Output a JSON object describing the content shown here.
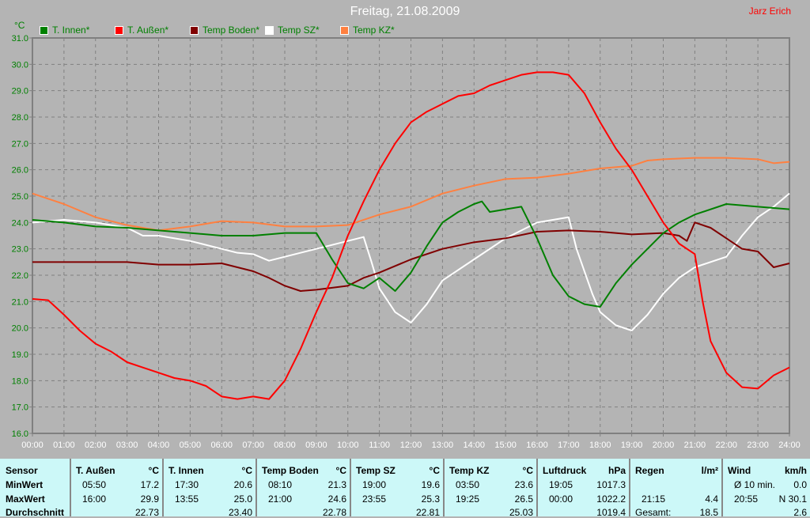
{
  "title": "Freitag, 21.08.2009",
  "author": "Jarz Erich",
  "chart_data": {
    "type": "line",
    "title": "Freitag, 21.08.2009",
    "ylabel": "°C",
    "ylim": [
      16.0,
      31.0
    ],
    "yticks": [
      "16.0",
      "17.0",
      "18.0",
      "19.0",
      "20.0",
      "21.0",
      "22.0",
      "23.0",
      "24.0",
      "25.0",
      "26.0",
      "27.0",
      "28.0",
      "29.0",
      "30.0",
      "31.0"
    ],
    "xlim": [
      0,
      24
    ],
    "xticks": [
      "00:00",
      "01:00",
      "02:00",
      "03:00",
      "04:00",
      "05:00",
      "06:00",
      "07:00",
      "08:00",
      "09:00",
      "10:00",
      "11:00",
      "12:00",
      "13:00",
      "14:00",
      "15:00",
      "16:00",
      "17:00",
      "18:00",
      "19:00",
      "20:00",
      "21:00",
      "22:00",
      "23:00",
      "24:00"
    ],
    "grid": true,
    "legend": "top",
    "series": [
      {
        "name": "T. Innen*",
        "color": "#008000",
        "points": [
          [
            0,
            24.1
          ],
          [
            1,
            24.0
          ],
          [
            2,
            23.85
          ],
          [
            3,
            23.8
          ],
          [
            4,
            23.7
          ],
          [
            5,
            23.6
          ],
          [
            6,
            23.5
          ],
          [
            7,
            23.5
          ],
          [
            8,
            23.6
          ],
          [
            9,
            23.6
          ],
          [
            9.5,
            22.6
          ],
          [
            10,
            21.7
          ],
          [
            10.5,
            21.5
          ],
          [
            11,
            21.9
          ],
          [
            11.5,
            21.4
          ],
          [
            12,
            22.1
          ],
          [
            12.5,
            23.1
          ],
          [
            13,
            24.0
          ],
          [
            13.5,
            24.4
          ],
          [
            14,
            24.7
          ],
          [
            14.25,
            24.8
          ],
          [
            14.5,
            24.4
          ],
          [
            15,
            24.5
          ],
          [
            15.5,
            24.6
          ],
          [
            16,
            23.4
          ],
          [
            16.5,
            22.0
          ],
          [
            17,
            21.2
          ],
          [
            17.5,
            20.9
          ],
          [
            18,
            20.8
          ],
          [
            18.5,
            21.7
          ],
          [
            19,
            22.4
          ],
          [
            19.5,
            23.0
          ],
          [
            20,
            23.6
          ],
          [
            20.5,
            24.0
          ],
          [
            21,
            24.3
          ],
          [
            22,
            24.7
          ],
          [
            23,
            24.6
          ],
          [
            24,
            24.5
          ]
        ]
      },
      {
        "name": "T. Außen*",
        "color": "#ff0000",
        "points": [
          [
            0,
            21.1
          ],
          [
            0.5,
            21.05
          ],
          [
            1,
            20.5
          ],
          [
            1.5,
            19.9
          ],
          [
            2,
            19.4
          ],
          [
            2.5,
            19.1
          ],
          [
            3,
            18.7
          ],
          [
            3.5,
            18.5
          ],
          [
            4,
            18.3
          ],
          [
            4.5,
            18.1
          ],
          [
            5,
            18.0
          ],
          [
            5.5,
            17.8
          ],
          [
            6,
            17.4
          ],
          [
            6.5,
            17.3
          ],
          [
            7,
            17.4
          ],
          [
            7.5,
            17.3
          ],
          [
            8,
            18.0
          ],
          [
            8.5,
            19.2
          ],
          [
            9,
            20.6
          ],
          [
            9.5,
            21.9
          ],
          [
            10,
            23.5
          ],
          [
            10.5,
            24.8
          ],
          [
            11,
            26.0
          ],
          [
            11.5,
            27.0
          ],
          [
            12,
            27.8
          ],
          [
            12.5,
            28.2
          ],
          [
            13,
            28.5
          ],
          [
            13.5,
            28.8
          ],
          [
            14,
            28.9
          ],
          [
            14.5,
            29.2
          ],
          [
            15,
            29.4
          ],
          [
            15.5,
            29.6
          ],
          [
            16,
            29.7
          ],
          [
            16.5,
            29.7
          ],
          [
            17,
            29.6
          ],
          [
            17.5,
            28.9
          ],
          [
            18,
            27.8
          ],
          [
            18.5,
            26.8
          ],
          [
            19,
            26.0
          ],
          [
            19.5,
            25.0
          ],
          [
            20,
            24.0
          ],
          [
            20.5,
            23.2
          ],
          [
            21,
            22.8
          ],
          [
            21.25,
            21.0
          ],
          [
            21.5,
            19.5
          ],
          [
            22,
            18.3
          ],
          [
            22.5,
            17.75
          ],
          [
            23,
            17.7
          ],
          [
            23.5,
            18.2
          ],
          [
            24,
            18.5
          ]
        ]
      },
      {
        "name": "Temp Boden*",
        "color": "#800000",
        "points": [
          [
            0,
            22.5
          ],
          [
            2,
            22.5
          ],
          [
            3,
            22.5
          ],
          [
            4,
            22.4
          ],
          [
            5,
            22.4
          ],
          [
            6,
            22.45
          ],
          [
            6.5,
            22.3
          ],
          [
            7,
            22.15
          ],
          [
            7.5,
            21.9
          ],
          [
            8,
            21.6
          ],
          [
            8.5,
            21.4
          ],
          [
            9,
            21.45
          ],
          [
            10,
            21.6
          ],
          [
            10.5,
            21.9
          ],
          [
            11,
            22.1
          ],
          [
            12,
            22.6
          ],
          [
            13,
            23.0
          ],
          [
            14,
            23.25
          ],
          [
            15,
            23.4
          ],
          [
            16,
            23.65
          ],
          [
            17,
            23.7
          ],
          [
            18,
            23.65
          ],
          [
            19,
            23.55
          ],
          [
            20,
            23.6
          ],
          [
            20.5,
            23.5
          ],
          [
            20.75,
            23.3
          ],
          [
            21,
            24.0
          ],
          [
            21.5,
            23.8
          ],
          [
            22,
            23.4
          ],
          [
            22.5,
            23.0
          ],
          [
            23,
            22.9
          ],
          [
            23.5,
            22.3
          ],
          [
            24,
            22.45
          ]
        ]
      },
      {
        "name": "Temp SZ*",
        "color": "#ffffff",
        "points": [
          [
            0,
            24.0
          ],
          [
            1,
            24.1
          ],
          [
            2,
            24.0
          ],
          [
            3,
            23.8
          ],
          [
            3.5,
            23.5
          ],
          [
            4,
            23.5
          ],
          [
            5,
            23.3
          ],
          [
            6,
            23.0
          ],
          [
            6.5,
            22.85
          ],
          [
            7,
            22.8
          ],
          [
            7.5,
            22.55
          ],
          [
            8,
            22.7
          ],
          [
            9,
            23.0
          ],
          [
            10,
            23.3
          ],
          [
            10.5,
            23.45
          ],
          [
            10.75,
            22.5
          ],
          [
            11,
            21.5
          ],
          [
            11.5,
            20.6
          ],
          [
            12,
            20.2
          ],
          [
            12.5,
            20.9
          ],
          [
            13,
            21.8
          ],
          [
            14,
            22.6
          ],
          [
            15,
            23.4
          ],
          [
            16,
            24.0
          ],
          [
            17,
            24.2
          ],
          [
            17.25,
            23.0
          ],
          [
            17.75,
            21.3
          ],
          [
            18,
            20.6
          ],
          [
            18.5,
            20.1
          ],
          [
            19,
            19.9
          ],
          [
            19.5,
            20.5
          ],
          [
            20,
            21.3
          ],
          [
            20.5,
            21.9
          ],
          [
            21,
            22.3
          ],
          [
            22,
            22.7
          ],
          [
            22.5,
            23.5
          ],
          [
            23,
            24.2
          ],
          [
            23.5,
            24.6
          ],
          [
            24,
            25.1
          ]
        ]
      },
      {
        "name": "Temp KZ*",
        "color": "#ff8040",
        "points": [
          [
            0,
            25.1
          ],
          [
            1,
            24.7
          ],
          [
            2,
            24.2
          ],
          [
            3,
            23.9
          ],
          [
            4,
            23.7
          ],
          [
            5,
            23.85
          ],
          [
            6,
            24.05
          ],
          [
            7,
            24.0
          ],
          [
            8,
            23.85
          ],
          [
            9,
            23.85
          ],
          [
            10,
            23.9
          ],
          [
            11,
            24.3
          ],
          [
            12,
            24.6
          ],
          [
            13,
            25.1
          ],
          [
            14,
            25.4
          ],
          [
            15,
            25.65
          ],
          [
            16,
            25.7
          ],
          [
            17,
            25.85
          ],
          [
            18,
            26.05
          ],
          [
            19,
            26.15
          ],
          [
            19.5,
            26.35
          ],
          [
            20,
            26.4
          ],
          [
            21,
            26.45
          ],
          [
            22,
            26.45
          ],
          [
            23,
            26.4
          ],
          [
            23.5,
            26.25
          ],
          [
            24,
            26.3
          ]
        ]
      }
    ]
  },
  "table": {
    "row_labels": [
      "Sensor",
      "MinWert",
      "MaxWert",
      "Durchschnitt"
    ],
    "columns": [
      {
        "name": "T. Außen",
        "unit": "°C",
        "min_time": "05:50",
        "min": "17.2",
        "max_time": "16:00",
        "max": "29.9",
        "avg": "22.73"
      },
      {
        "name": "T. Innen",
        "unit": "°C",
        "min_time": "17:30",
        "min": "20.6",
        "max_time": "13:55",
        "max": "25.0",
        "avg": "23.40"
      },
      {
        "name": "Temp Boden",
        "unit": "°C",
        "min_time": "08:10",
        "min": "21.3",
        "max_time": "21:00",
        "max": "24.6",
        "avg": "22.78"
      },
      {
        "name": "Temp SZ",
        "unit": "°C",
        "min_time": "19:00",
        "min": "19.6",
        "max_time": "23:55",
        "max": "25.3",
        "avg": "22.81"
      },
      {
        "name": "Temp KZ",
        "unit": "°C",
        "min_time": "03:50",
        "min": "23.6",
        "max_time": "19:25",
        "max": "26.5",
        "avg": "25.03"
      },
      {
        "name": "Luftdruck",
        "unit": "hPa",
        "min_time": "19:05",
        "min": "1017.3",
        "max_time": "00:00",
        "max": "1022.2",
        "avg": "1019.4"
      },
      {
        "name": "Regen",
        "unit": "l/m²",
        "min_time": "",
        "min": "",
        "max_time": "21:15",
        "max": "4.4",
        "avg_label": "Gesamt:",
        "avg": "18.5"
      },
      {
        "name": "Wind",
        "unit": "km/h",
        "min_time": "Ø 10 min.",
        "min": "0.0",
        "max_time": "20:55",
        "max": "N 30.1",
        "avg": "2.6"
      }
    ]
  }
}
